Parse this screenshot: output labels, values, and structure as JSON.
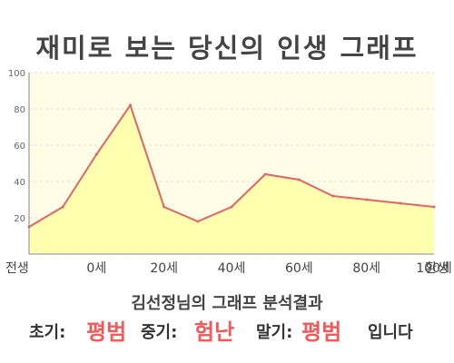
{
  "title": "재미로 보는 당신의 인생 그래프",
  "subtitle": "김선정님의 그래프 분석결과",
  "result": {
    "early_label": "초기:",
    "early_value": "평범",
    "middle_label": "중기:",
    "middle_value": "험난",
    "late_label": "말기:",
    "late_value": "평범",
    "suffix": "입니다"
  },
  "colors": {
    "line": "#e06666",
    "fill": "#ffffb0",
    "plot_bg": "#fffde6",
    "highlight": "#f05a5a"
  },
  "chart_data": {
    "type": "area",
    "title": "재미로 보는 당신의 인생 그래프",
    "xlabel": "",
    "ylabel": "",
    "x_tick_labels": [
      "전생",
      "0세",
      "20세",
      "40세",
      "60세",
      "80세",
      "100세",
      "환생"
    ],
    "y_ticks": [
      20,
      40,
      60,
      80,
      100
    ],
    "ylim": [
      0,
      100
    ],
    "grid": true,
    "series": [
      {
        "x": [
          "전생",
          "0세",
          "",
          "20세",
          "",
          "40세",
          "",
          "60세",
          "",
          "80세",
          "",
          "100세",
          "환생"
        ],
        "values": [
          15,
          26,
          55,
          82,
          26,
          18,
          26,
          44,
          41,
          32,
          30,
          28,
          26
        ]
      }
    ]
  }
}
